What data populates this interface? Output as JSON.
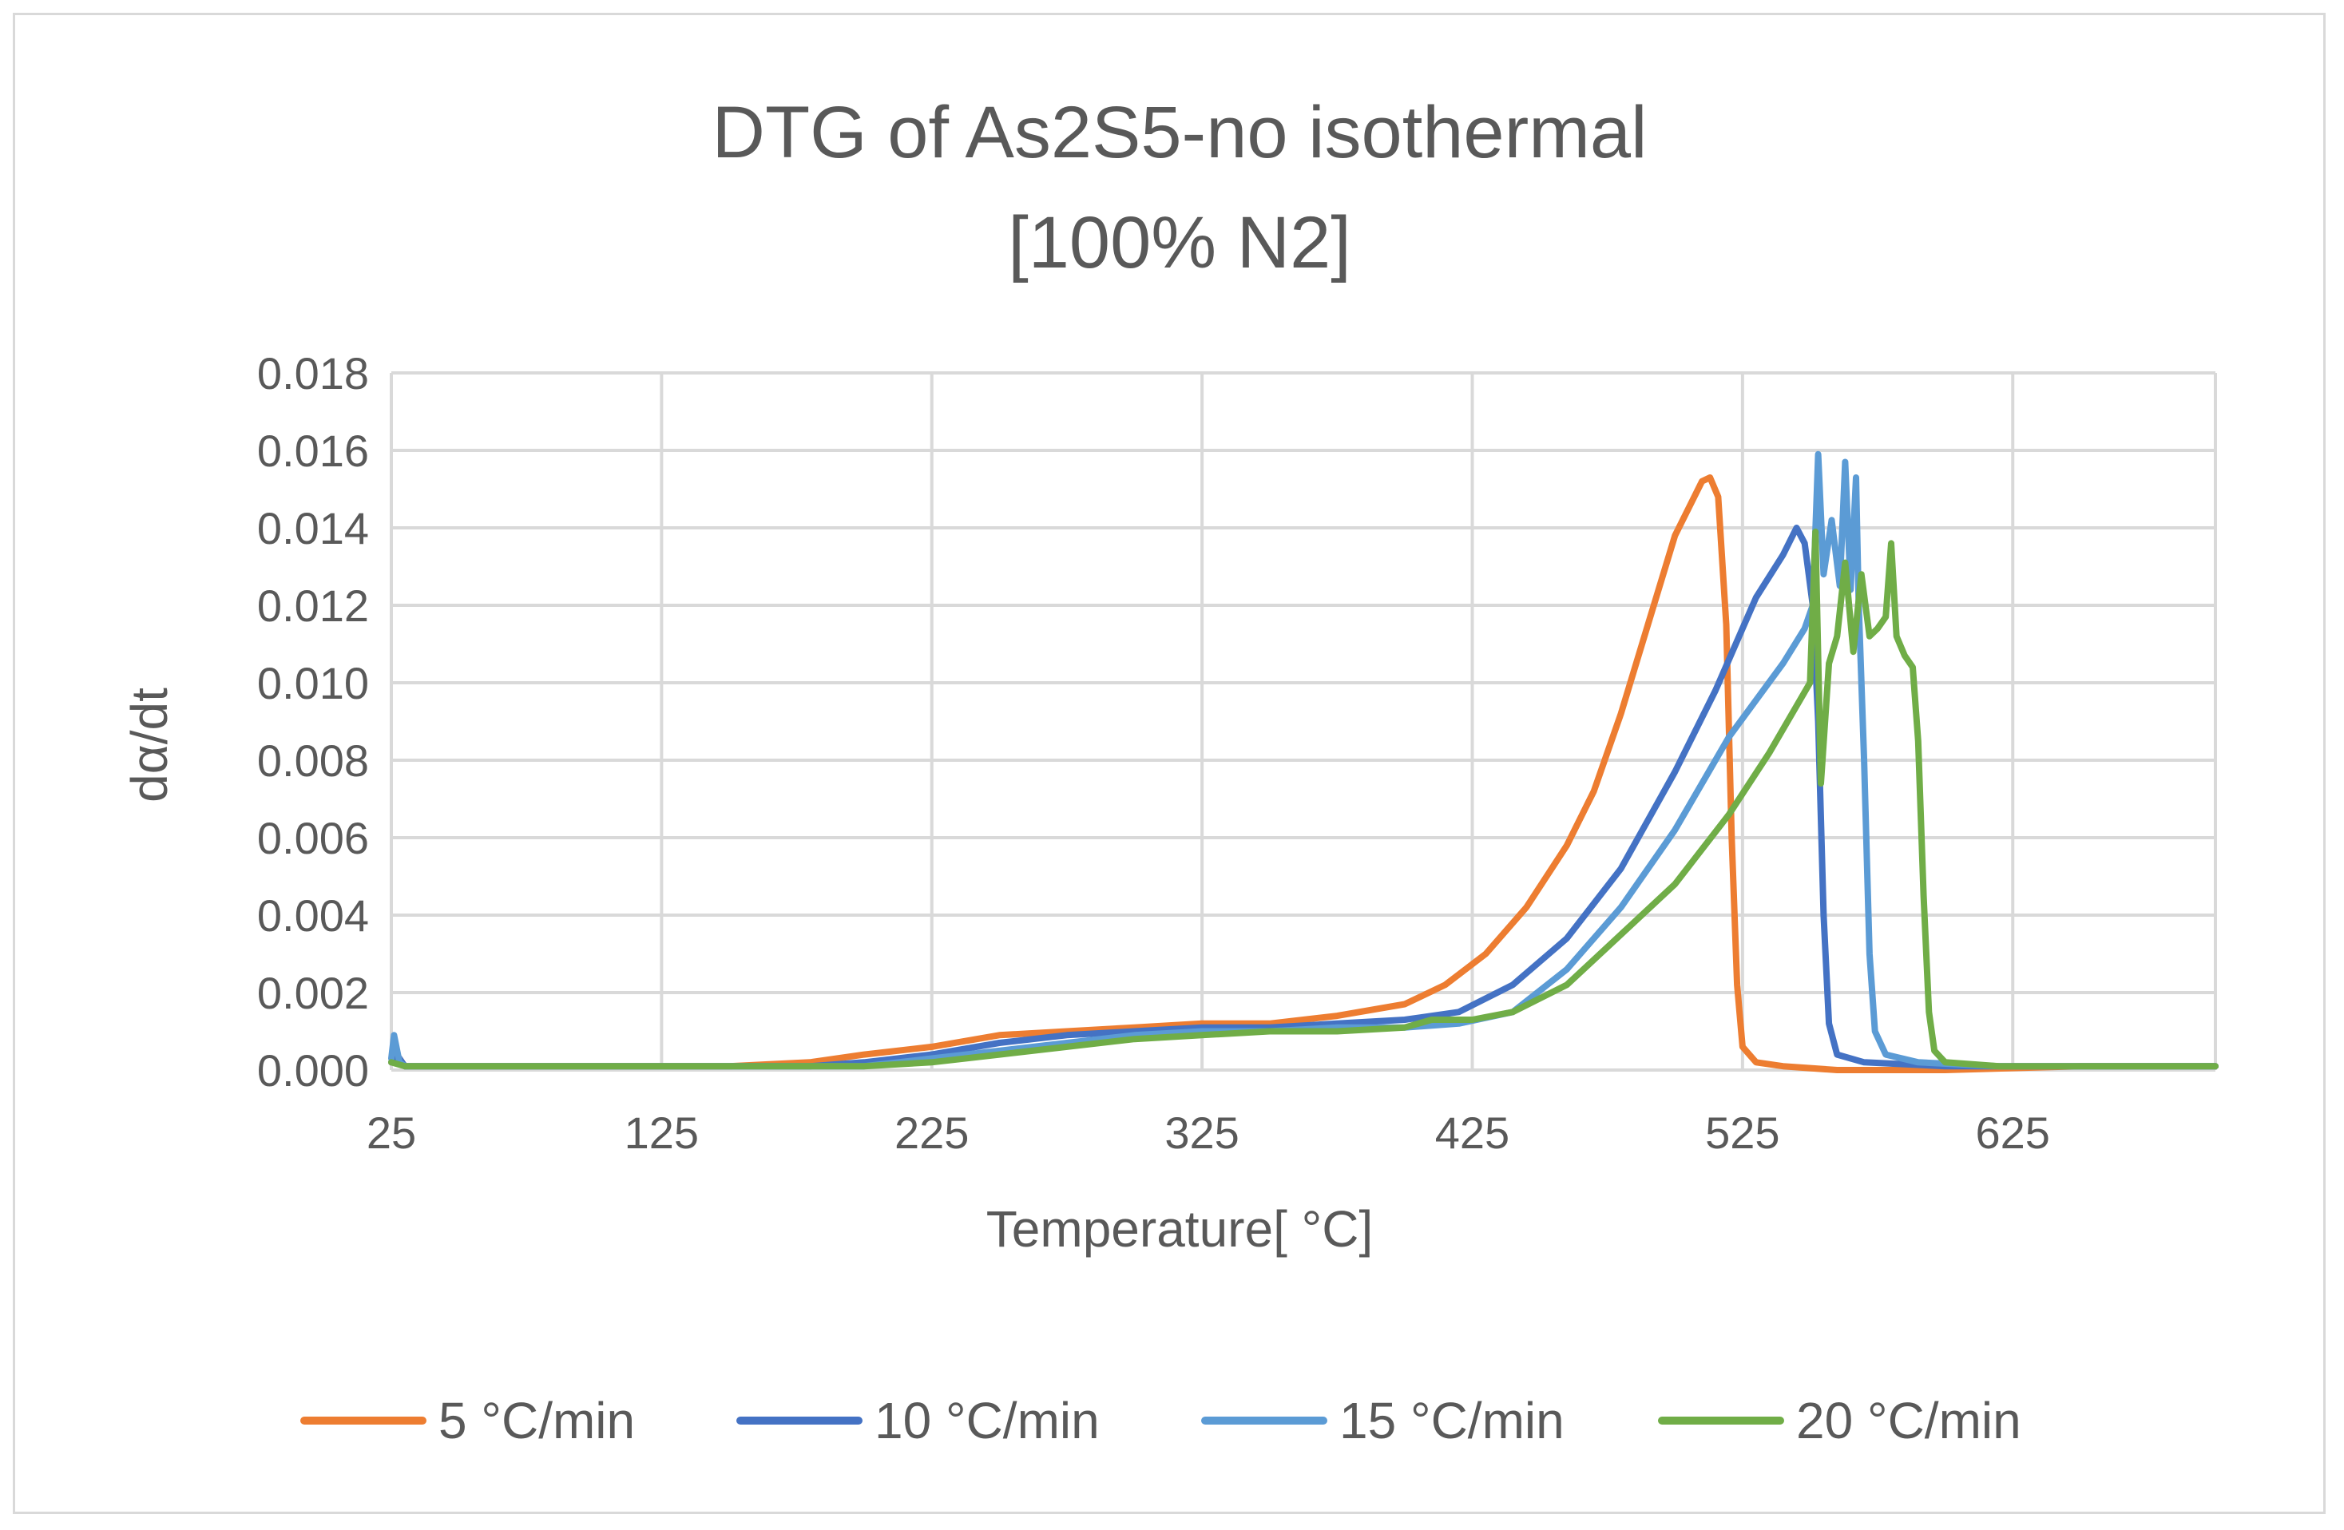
{
  "chart_data": {
    "type": "line",
    "title_lines": [
      "DTG of As2S5-no isothermal",
      "[100% N2]"
    ],
    "xlabel": "Temperature[ °C]",
    "ylabel": "dα/dt",
    "xlim": [
      25,
      700
    ],
    "ylim": [
      0,
      0.018
    ],
    "x_ticks": [
      25,
      125,
      225,
      325,
      425,
      525,
      625
    ],
    "x_tick_labels": [
      "25",
      "125",
      "225",
      "325",
      "425",
      "525",
      "625"
    ],
    "y_ticks": [
      0,
      0.002,
      0.004,
      0.006,
      0.008,
      0.01,
      0.012,
      0.014,
      0.016,
      0.018
    ],
    "y_tick_labels": [
      "0.000",
      "0.002",
      "0.004",
      "0.006",
      "0.008",
      "0.010",
      "0.012",
      "0.014",
      "0.016",
      "0.018"
    ],
    "grid": true,
    "legend_position": "bottom",
    "series": [
      {
        "name": "5 °C/min",
        "color": "#ed7d31",
        "points": [
          [
            25,
            0.0002
          ],
          [
            27,
            0.0004
          ],
          [
            30,
            0.0001
          ],
          [
            100,
            0.0001
          ],
          [
            150,
            0.0001
          ],
          [
            180,
            0.0002
          ],
          [
            200,
            0.0004
          ],
          [
            225,
            0.0006
          ],
          [
            250,
            0.0009
          ],
          [
            275,
            0.001
          ],
          [
            300,
            0.0011
          ],
          [
            325,
            0.0012
          ],
          [
            350,
            0.0012
          ],
          [
            375,
            0.0014
          ],
          [
            400,
            0.0017
          ],
          [
            415,
            0.0022
          ],
          [
            430,
            0.003
          ],
          [
            445,
            0.0042
          ],
          [
            460,
            0.0058
          ],
          [
            470,
            0.0072
          ],
          [
            480,
            0.0092
          ],
          [
            490,
            0.0115
          ],
          [
            500,
            0.0138
          ],
          [
            510,
            0.0152
          ],
          [
            513,
            0.0153
          ],
          [
            516,
            0.0148
          ],
          [
            519,
            0.0115
          ],
          [
            521,
            0.006
          ],
          [
            523,
            0.0022
          ],
          [
            525,
            0.0006
          ],
          [
            530,
            0.0002
          ],
          [
            540,
            0.0001
          ],
          [
            560,
            0.0
          ],
          [
            600,
            0.0
          ],
          [
            650,
            0.0001
          ],
          [
            700,
            0.0001
          ]
        ]
      },
      {
        "name": "10 °C/min",
        "color": "#4472c4",
        "points": [
          [
            25,
            0.0002
          ],
          [
            27,
            0.0004
          ],
          [
            30,
            0.0001
          ],
          [
            100,
            0.0001
          ],
          [
            150,
            0.0001
          ],
          [
            180,
            0.0001
          ],
          [
            200,
            0.0002
          ],
          [
            225,
            0.0004
          ],
          [
            250,
            0.0007
          ],
          [
            275,
            0.0009
          ],
          [
            300,
            0.001
          ],
          [
            325,
            0.0011
          ],
          [
            350,
            0.0011
          ],
          [
            375,
            0.0012
          ],
          [
            400,
            0.0013
          ],
          [
            420,
            0.0015
          ],
          [
            440,
            0.0022
          ],
          [
            460,
            0.0034
          ],
          [
            480,
            0.0052
          ],
          [
            500,
            0.0077
          ],
          [
            515,
            0.0098
          ],
          [
            530,
            0.0122
          ],
          [
            540,
            0.0133
          ],
          [
            545,
            0.014
          ],
          [
            548,
            0.0136
          ],
          [
            551,
            0.012
          ],
          [
            553,
            0.009
          ],
          [
            555,
            0.004
          ],
          [
            557,
            0.0012
          ],
          [
            560,
            0.0004
          ],
          [
            570,
            0.0002
          ],
          [
            600,
            0.0001
          ],
          [
            650,
            0.0001
          ],
          [
            700,
            0.0001
          ]
        ]
      },
      {
        "name": "15 °C/min",
        "color": "#5b9bd5",
        "points": [
          [
            25,
            0.0003
          ],
          [
            26,
            0.0009
          ],
          [
            28,
            0.0002
          ],
          [
            30,
            0.0001
          ],
          [
            100,
            0.0001
          ],
          [
            150,
            0.0001
          ],
          [
            200,
            0.0001
          ],
          [
            225,
            0.0003
          ],
          [
            250,
            0.0005
          ],
          [
            275,
            0.0007
          ],
          [
            300,
            0.0009
          ],
          [
            325,
            0.001
          ],
          [
            350,
            0.001
          ],
          [
            375,
            0.0011
          ],
          [
            400,
            0.0011
          ],
          [
            420,
            0.0012
          ],
          [
            440,
            0.0015
          ],
          [
            460,
            0.0026
          ],
          [
            480,
            0.0042
          ],
          [
            500,
            0.0062
          ],
          [
            520,
            0.0086
          ],
          [
            540,
            0.0105
          ],
          [
            548,
            0.0114
          ],
          [
            551,
            0.012
          ],
          [
            553,
            0.0159
          ],
          [
            555,
            0.0128
          ],
          [
            558,
            0.0142
          ],
          [
            561,
            0.0125
          ],
          [
            563,
            0.0157
          ],
          [
            565,
            0.0124
          ],
          [
            567,
            0.0153
          ],
          [
            568,
            0.012
          ],
          [
            570,
            0.008
          ],
          [
            572,
            0.003
          ],
          [
            574,
            0.001
          ],
          [
            578,
            0.0004
          ],
          [
            590,
            0.0002
          ],
          [
            620,
            0.0001
          ],
          [
            700,
            0.0001
          ]
        ]
      },
      {
        "name": "20 °C/min",
        "color": "#70ad47",
        "points": [
          [
            25,
            0.0002
          ],
          [
            30,
            0.0001
          ],
          [
            100,
            0.0001
          ],
          [
            150,
            0.0001
          ],
          [
            200,
            0.0001
          ],
          [
            225,
            0.0002
          ],
          [
            250,
            0.0004
          ],
          [
            275,
            0.0006
          ],
          [
            300,
            0.0008
          ],
          [
            325,
            0.0009
          ],
          [
            350,
            0.001
          ],
          [
            375,
            0.001
          ],
          [
            400,
            0.0011
          ],
          [
            410,
            0.0013
          ],
          [
            425,
            0.0013
          ],
          [
            440,
            0.0015
          ],
          [
            460,
            0.0022
          ],
          [
            480,
            0.0035
          ],
          [
            500,
            0.0048
          ],
          [
            520,
            0.0066
          ],
          [
            535,
            0.0082
          ],
          [
            545,
            0.0094
          ],
          [
            550,
            0.01
          ],
          [
            552,
            0.0139
          ],
          [
            554,
            0.0074
          ],
          [
            557,
            0.0105
          ],
          [
            560,
            0.0112
          ],
          [
            563,
            0.0131
          ],
          [
            566,
            0.0108
          ],
          [
            569,
            0.0128
          ],
          [
            572,
            0.0112
          ],
          [
            575,
            0.0114
          ],
          [
            578,
            0.0117
          ],
          [
            580,
            0.0136
          ],
          [
            582,
            0.0112
          ],
          [
            585,
            0.0107
          ],
          [
            588,
            0.0104
          ],
          [
            590,
            0.0085
          ],
          [
            592,
            0.0045
          ],
          [
            594,
            0.0015
          ],
          [
            596,
            0.0005
          ],
          [
            600,
            0.0002
          ],
          [
            620,
            0.0001
          ],
          [
            700,
            0.0001
          ]
        ]
      }
    ]
  }
}
